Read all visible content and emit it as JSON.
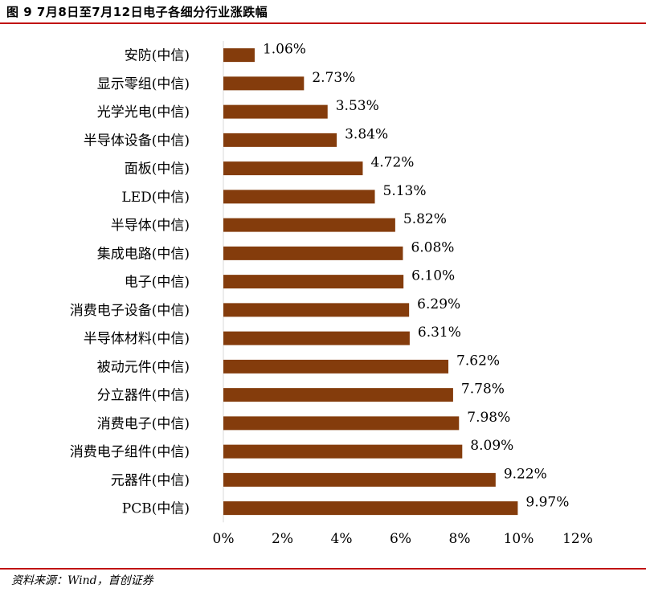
{
  "figure": {
    "title": "图 9 7月8日至7月12日电子各细分行业涨跌幅",
    "source": "资料来源：Wind，首创证券",
    "rule_color": "#C00000"
  },
  "chart_data": {
    "type": "bar",
    "orientation": "horizontal",
    "categories": [
      "安防(中信)",
      "显示零组(中信)",
      "光学光电(中信)",
      "半导体设备(中信)",
      "面板(中信)",
      "LED(中信)",
      "半导体(中信)",
      "集成电路(中信)",
      "电子(中信)",
      "消费电子设备(中信)",
      "半导体材料(中信)",
      "被动元件(中信)",
      "分立器件(中信)",
      "消费电子(中信)",
      "消费电子组件(中信)",
      "元器件(中信)",
      "PCB(中信)"
    ],
    "values": [
      1.06,
      2.73,
      3.53,
      3.84,
      4.72,
      5.13,
      5.82,
      6.08,
      6.1,
      6.29,
      6.31,
      7.62,
      7.78,
      7.98,
      8.09,
      9.22,
      9.97
    ],
    "value_labels": [
      "1.06%",
      "2.73%",
      "3.53%",
      "3.84%",
      "4.72%",
      "5.13%",
      "5.82%",
      "6.08%",
      "6.10%",
      "6.29%",
      "6.31%",
      "7.62%",
      "7.78%",
      "7.98%",
      "8.09%",
      "9.22%",
      "9.97%"
    ],
    "xlim": [
      0,
      12
    ],
    "x_ticks": [
      "0%",
      "2%",
      "4%",
      "6%",
      "8%",
      "10%",
      "12%"
    ],
    "bar_color": "#843C0C",
    "grid": false,
    "legend": "none"
  }
}
